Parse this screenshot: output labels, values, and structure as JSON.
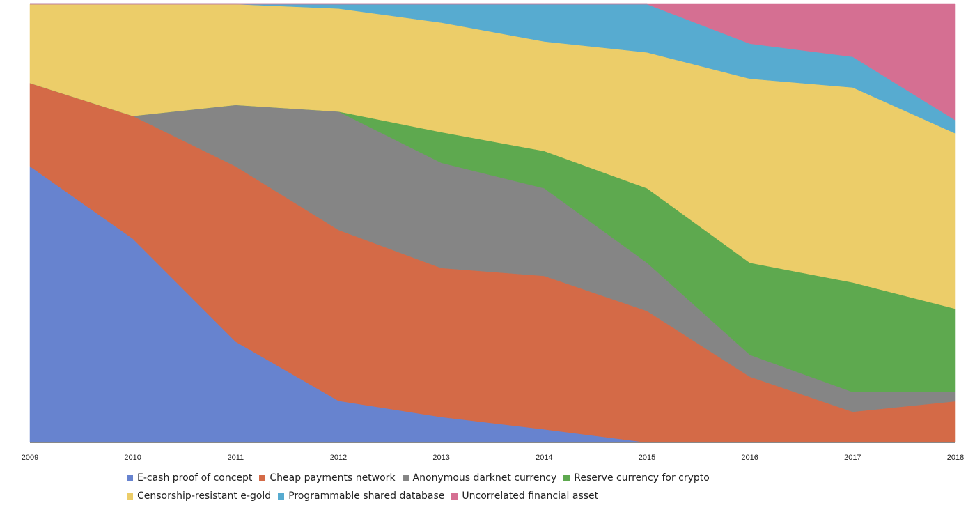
{
  "chart_data": {
    "type": "area",
    "stacked": true,
    "normalized": true,
    "categories": [
      "2009",
      "2010",
      "2011",
      "2012",
      "2013",
      "2014",
      "2015",
      "2016",
      "2017",
      "2018"
    ],
    "ylim": [
      0,
      1
    ],
    "title": "",
    "xlabel": "",
    "ylabel": "",
    "grid": false,
    "legend_position": "bottom",
    "series": [
      {
        "name": "E-cash proof of concept",
        "color": "#6783cf",
        "values": [
          0.63,
          0.465,
          0.23,
          0.095,
          0.058,
          0.03,
          0.0,
          0.0,
          0.0,
          0.0
        ]
      },
      {
        "name": "Cheap payments network",
        "color": "#d46a47",
        "values": [
          0.19,
          0.28,
          0.4,
          0.39,
          0.34,
          0.35,
          0.3,
          0.15,
          0.07,
          0.094
        ]
      },
      {
        "name": "Anonymous darknet currency",
        "color": "#858585",
        "values": [
          0.0,
          0.0,
          0.14,
          0.27,
          0.24,
          0.2,
          0.11,
          0.05,
          0.045,
          0.021
        ]
      },
      {
        "name": "Reserve currency for crypto",
        "color": "#5ea94f",
        "values": [
          0.0,
          0.0,
          0.0,
          0.0,
          0.07,
          0.085,
          0.17,
          0.21,
          0.25,
          0.19
        ]
      },
      {
        "name": "Censorship-resistant e-gold",
        "color": "#eccd69",
        "values": [
          0.18,
          0.255,
          0.23,
          0.235,
          0.25,
          0.25,
          0.31,
          0.42,
          0.445,
          0.4
        ]
      },
      {
        "name": "Programmable shared database",
        "color": "#57abd0",
        "values": [
          0.0,
          0.0,
          0.0,
          0.01,
          0.042,
          0.085,
          0.11,
          0.08,
          0.07,
          0.03
        ]
      },
      {
        "name": "Uncorrelated financial asset",
        "color": "#d56f92",
        "values": [
          0.0,
          0.0,
          0.0,
          0.0,
          0.0,
          0.0,
          0.0,
          0.09,
          0.12,
          0.265
        ]
      }
    ]
  }
}
